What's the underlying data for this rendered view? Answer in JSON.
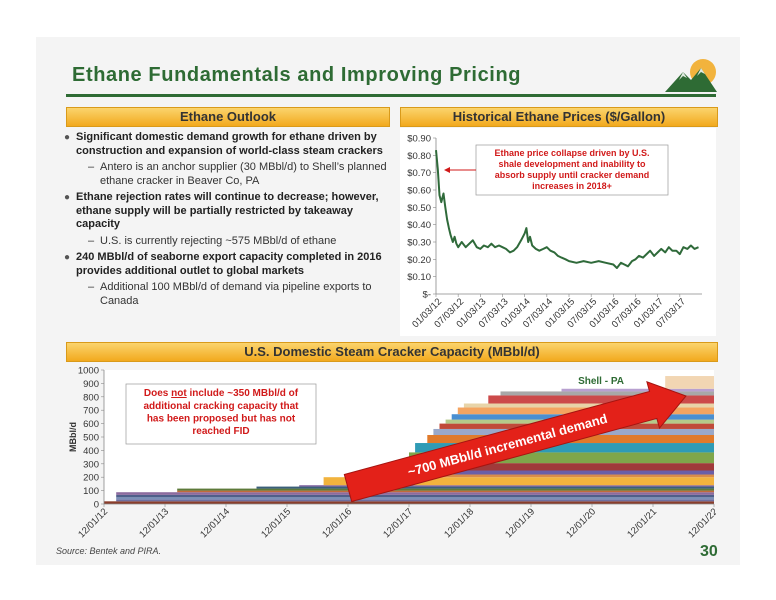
{
  "slide": {
    "title": "Ethane Fundamentals and Improving Pricing",
    "page_number": "30",
    "source": "Source: Bentek and PIRA."
  },
  "outlook": {
    "header": "Ethane Outlook",
    "bullets": [
      {
        "level": 1,
        "text": "Significant domestic demand growth for ethane driven by construction and expansion of world-class steam crackers"
      },
      {
        "level": 2,
        "text": "Antero is an anchor supplier (30 MBbl/d) to Shell’s planned ethane cracker in Beaver Co, PA"
      },
      {
        "level": 1,
        "text": "Ethane rejection rates will continue to decrease; however, ethane supply will be partially restricted by takeaway capacity"
      },
      {
        "level": 2,
        "text": "U.S. is currently rejecting ~575 MBbl/d of ethane"
      },
      {
        "level": 1,
        "text": "240 MBbl/d of seaborne export capacity completed in 2016 provides additional outlet to global markets"
      },
      {
        "level": 2,
        "text": "Additional 100 MBbl/d of demand via pipeline exports to Canada"
      }
    ]
  },
  "colors": {
    "brand_green": "#2e6b34",
    "header_gold": "#f2a91e",
    "price_line": "#2f6a3a",
    "annotation_red": "#d11a1a"
  },
  "chart_data": [
    {
      "type": "line",
      "title": "Historical Ethane Prices ($/Gallon)",
      "ylim": [
        0,
        0.9
      ],
      "y_ticks": [
        "$-",
        "$0.10",
        "$0.20",
        "$0.30",
        "$0.40",
        "$0.50",
        "$0.60",
        "$0.70",
        "$0.80",
        "$0.90"
      ],
      "x_ticks": [
        "01/03/12",
        "07/03/12",
        "01/03/13",
        "07/03/13",
        "01/03/14",
        "07/03/14",
        "01/03/15",
        "07/03/15",
        "01/03/16",
        "07/03/16",
        "01/03/17",
        "07/03/17"
      ],
      "annotation": "Ethane price collapse driven by U.S. shale development and inability to absorb supply until cracker demand increases in 2018+",
      "series": [
        {
          "x": [
            2012.0,
            2012.04,
            2012.08,
            2012.12,
            2012.17,
            2012.21,
            2012.25,
            2012.29,
            2012.33,
            2012.38,
            2012.42,
            2012.46,
            2012.5,
            2012.58,
            2012.67,
            2012.75,
            2012.83,
            2012.92,
            2013.0,
            2013.08,
            2013.17,
            2013.25,
            2013.33,
            2013.42,
            2013.5,
            2013.58,
            2013.67,
            2013.75,
            2013.83,
            2013.92,
            2014.0,
            2014.04,
            2014.08,
            2014.12,
            2014.17,
            2014.25,
            2014.33,
            2014.42,
            2014.5,
            2014.58,
            2014.67,
            2014.75,
            2014.83,
            2014.92,
            2015.0,
            2015.17,
            2015.33,
            2015.5,
            2015.67,
            2015.83,
            2016.0,
            2016.08,
            2016.17,
            2016.25,
            2016.33,
            2016.42,
            2016.5,
            2016.58,
            2016.67,
            2016.75,
            2016.83,
            2016.92,
            2017.0,
            2017.08,
            2017.17,
            2017.25,
            2017.33,
            2017.42,
            2017.5,
            2017.58,
            2017.67,
            2017.75,
            2017.83,
            2017.92
          ],
          "values": [
            0.83,
            0.72,
            0.57,
            0.53,
            0.58,
            0.5,
            0.43,
            0.38,
            0.34,
            0.3,
            0.33,
            0.29,
            0.27,
            0.3,
            0.27,
            0.29,
            0.31,
            0.27,
            0.26,
            0.28,
            0.27,
            0.29,
            0.27,
            0.28,
            0.27,
            0.26,
            0.24,
            0.25,
            0.27,
            0.31,
            0.35,
            0.38,
            0.3,
            0.33,
            0.28,
            0.26,
            0.25,
            0.26,
            0.27,
            0.25,
            0.24,
            0.22,
            0.21,
            0.2,
            0.19,
            0.18,
            0.19,
            0.18,
            0.19,
            0.18,
            0.17,
            0.15,
            0.18,
            0.17,
            0.16,
            0.19,
            0.2,
            0.22,
            0.21,
            0.23,
            0.25,
            0.22,
            0.24,
            0.26,
            0.24,
            0.27,
            0.25,
            0.25,
            0.23,
            0.27,
            0.26,
            0.28,
            0.26,
            0.27
          ]
        }
      ]
    },
    {
      "type": "area",
      "title": "U.S. Domestic Steam Cracker Capacity (MBbl/d)",
      "ylabel": "MBbl/d",
      "ylim": [
        0,
        1000
      ],
      "y_ticks": [
        "0",
        "100",
        "200",
        "300",
        "400",
        "500",
        "600",
        "700",
        "800",
        "900",
        "1000"
      ],
      "x_ticks": [
        "12/01/12",
        "12/01/13",
        "12/01/14",
        "12/01/15",
        "12/01/16",
        "12/01/17",
        "12/01/18",
        "12/01/19",
        "12/01/20",
        "12/01/21",
        "12/01/22"
      ],
      "note": "Does not include ~350 MBbl/d of additional cracking capacity that has been proposed but has not reached FID",
      "note_parts": [
        "Does ",
        "not",
        " include ~350 MBbl/d of",
        "additional cracking capacity that",
        "has been proposed but has not",
        "reached FID"
      ],
      "arrow_label": "~700 MBbl/d incremental demand",
      "callout": "Shell - PA",
      "layers": [
        {
          "start": 2012.0,
          "value": 20,
          "color": "#8a3d2b"
        },
        {
          "start": 2012.2,
          "value": 15,
          "color": "#6e6e9e"
        },
        {
          "start": 2012.2,
          "value": 15,
          "color": "#7a8fb8"
        },
        {
          "start": 2012.2,
          "value": 18,
          "color": "#4f5f8a"
        },
        {
          "start": 2012.2,
          "value": 20,
          "color": "#8c6b9e"
        },
        {
          "start": 2013.2,
          "value": 12,
          "color": "#c26a3a"
        },
        {
          "start": 2013.2,
          "value": 15,
          "color": "#5d7a3a"
        },
        {
          "start": 2014.5,
          "value": 15,
          "color": "#3a5f7a"
        },
        {
          "start": 2015.2,
          "value": 10,
          "color": "#7a5d9e"
        },
        {
          "start": 2015.6,
          "value": 60,
          "color": "#f2b33d"
        },
        {
          "start": 2016.3,
          "value": 20,
          "color": "#d98c4a"
        },
        {
          "start": 2016.6,
          "value": 30,
          "color": "#6a5fa8"
        },
        {
          "start": 2016.9,
          "value": 55,
          "color": "#a03a3a"
        },
        {
          "start": 2017.0,
          "value": 80,
          "color": "#7fa64a"
        },
        {
          "start": 2017.1,
          "value": 70,
          "color": "#2f9bb5"
        },
        {
          "start": 2017.3,
          "value": 60,
          "color": "#e07a2b"
        },
        {
          "start": 2017.4,
          "value": 45,
          "color": "#9aa8c9"
        },
        {
          "start": 2017.5,
          "value": 40,
          "color": "#c04a3a"
        },
        {
          "start": 2017.6,
          "value": 30,
          "color": "#b5c98a"
        },
        {
          "start": 2017.7,
          "value": 40,
          "color": "#4a8fd1"
        },
        {
          "start": 2017.8,
          "value": 50,
          "color": "#f4a460"
        },
        {
          "start": 2017.9,
          "value": 30,
          "color": "#e8d4a8"
        },
        {
          "start": 2018.3,
          "value": 60,
          "color": "#cc4a4a"
        },
        {
          "start": 2018.5,
          "value": 30,
          "color": "#a8a8a8"
        },
        {
          "start": 2019.5,
          "value": 20,
          "color": "#b8a0d0"
        },
        {
          "start": 2021.2,
          "value": 95,
          "color": "#f2d6b3"
        }
      ]
    }
  ]
}
